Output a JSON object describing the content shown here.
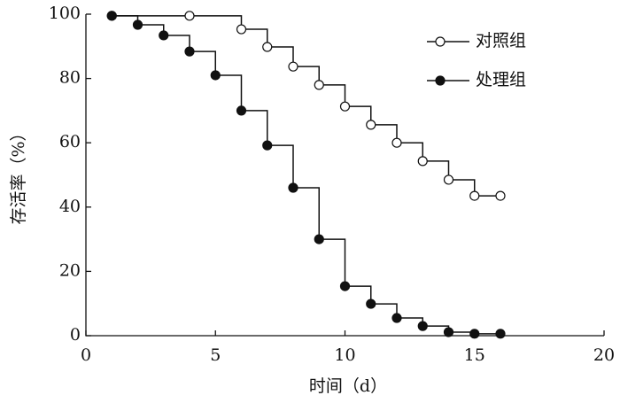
{
  "chart_data": {
    "type": "line",
    "drawstyle": "steps-post",
    "xlabel": "时间（d）",
    "ylabel": "存活率（%）",
    "xlim": [
      0,
      20
    ],
    "xticks": [
      0,
      5,
      10,
      15,
      20
    ],
    "ylim": [
      0,
      100
    ],
    "yticks": [
      0,
      20,
      40,
      60,
      80,
      100
    ],
    "legend": "upper right",
    "series": [
      {
        "name": "对照组",
        "color": "#111111",
        "marker": "open",
        "x": [
          1,
          4,
          6,
          7,
          8,
          9,
          10,
          11,
          12,
          13,
          14,
          15,
          16
        ],
        "values": [
          99.5,
          99.5,
          95.3,
          89.8,
          83.7,
          78,
          71.3,
          65.6,
          60,
          54.3,
          48.5,
          43.5,
          43.5
        ]
      },
      {
        "name": "处理组",
        "color": "#111111",
        "marker": "filled",
        "x": [
          1,
          2,
          3,
          4,
          5,
          6,
          7,
          8,
          9,
          10,
          11,
          12,
          13,
          14,
          15,
          16
        ],
        "values": [
          99.5,
          96.7,
          93.4,
          88.4,
          81,
          70,
          59.2,
          46,
          30,
          15.4,
          9.9,
          5.5,
          3,
          1.1,
          0.6,
          0.6
        ]
      }
    ]
  }
}
